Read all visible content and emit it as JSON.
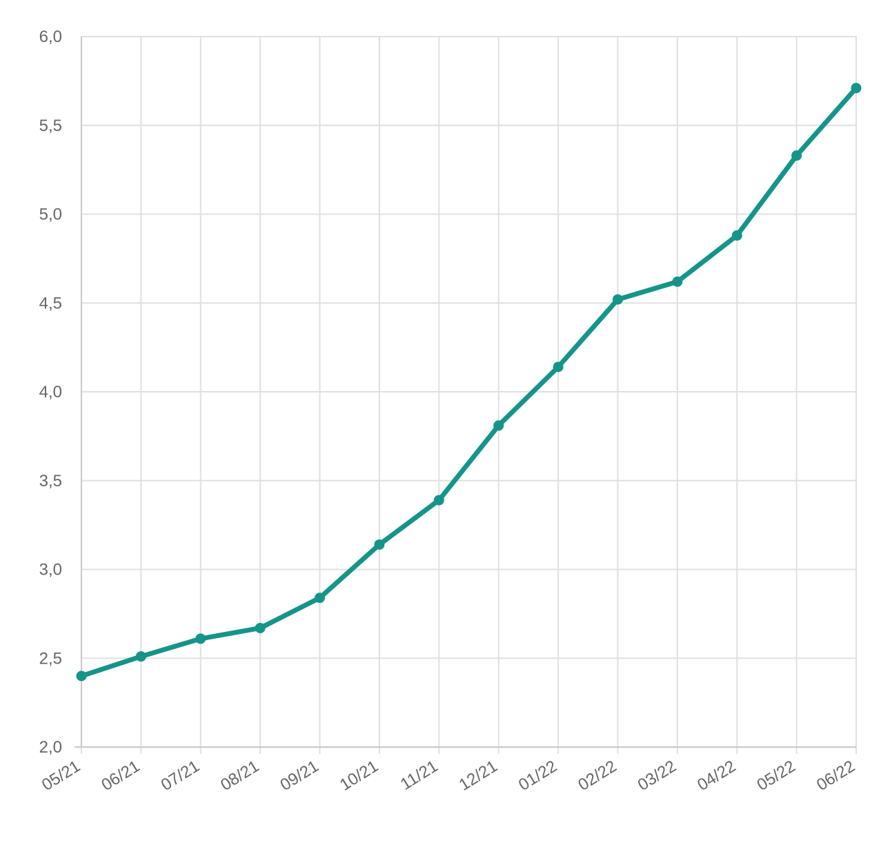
{
  "chart_data": {
    "type": "line",
    "title": "",
    "xlabel": "",
    "ylabel": "",
    "categories": [
      "05/21",
      "06/21",
      "07/21",
      "08/21",
      "09/21",
      "10/21",
      "11/21",
      "12/21",
      "01/22",
      "02/22",
      "03/22",
      "04/22",
      "05/22",
      "06/22"
    ],
    "series": [
      {
        "values": [
          2.4,
          2.51,
          2.61,
          2.67,
          2.84,
          3.14,
          3.39,
          3.81,
          4.14,
          4.52,
          4.62,
          4.88,
          5.33,
          5.71
        ],
        "color": "#15948a"
      }
    ],
    "ylim": [
      2.0,
      6.0
    ],
    "yticks": [
      2.0,
      2.5,
      3.0,
      3.5,
      4.0,
      4.5,
      5.0,
      5.5,
      6.0
    ],
    "ytick_labels": [
      "2,0",
      "2,5",
      "3,0",
      "3,5",
      "4,0",
      "4,5",
      "5,0",
      "5,5",
      "6,0"
    ],
    "grid": true,
    "legend": "none"
  },
  "colors": {
    "line": "#15948a",
    "grid": "#e0e0e0",
    "axis": "#c8c8c8",
    "text": "#666666"
  }
}
